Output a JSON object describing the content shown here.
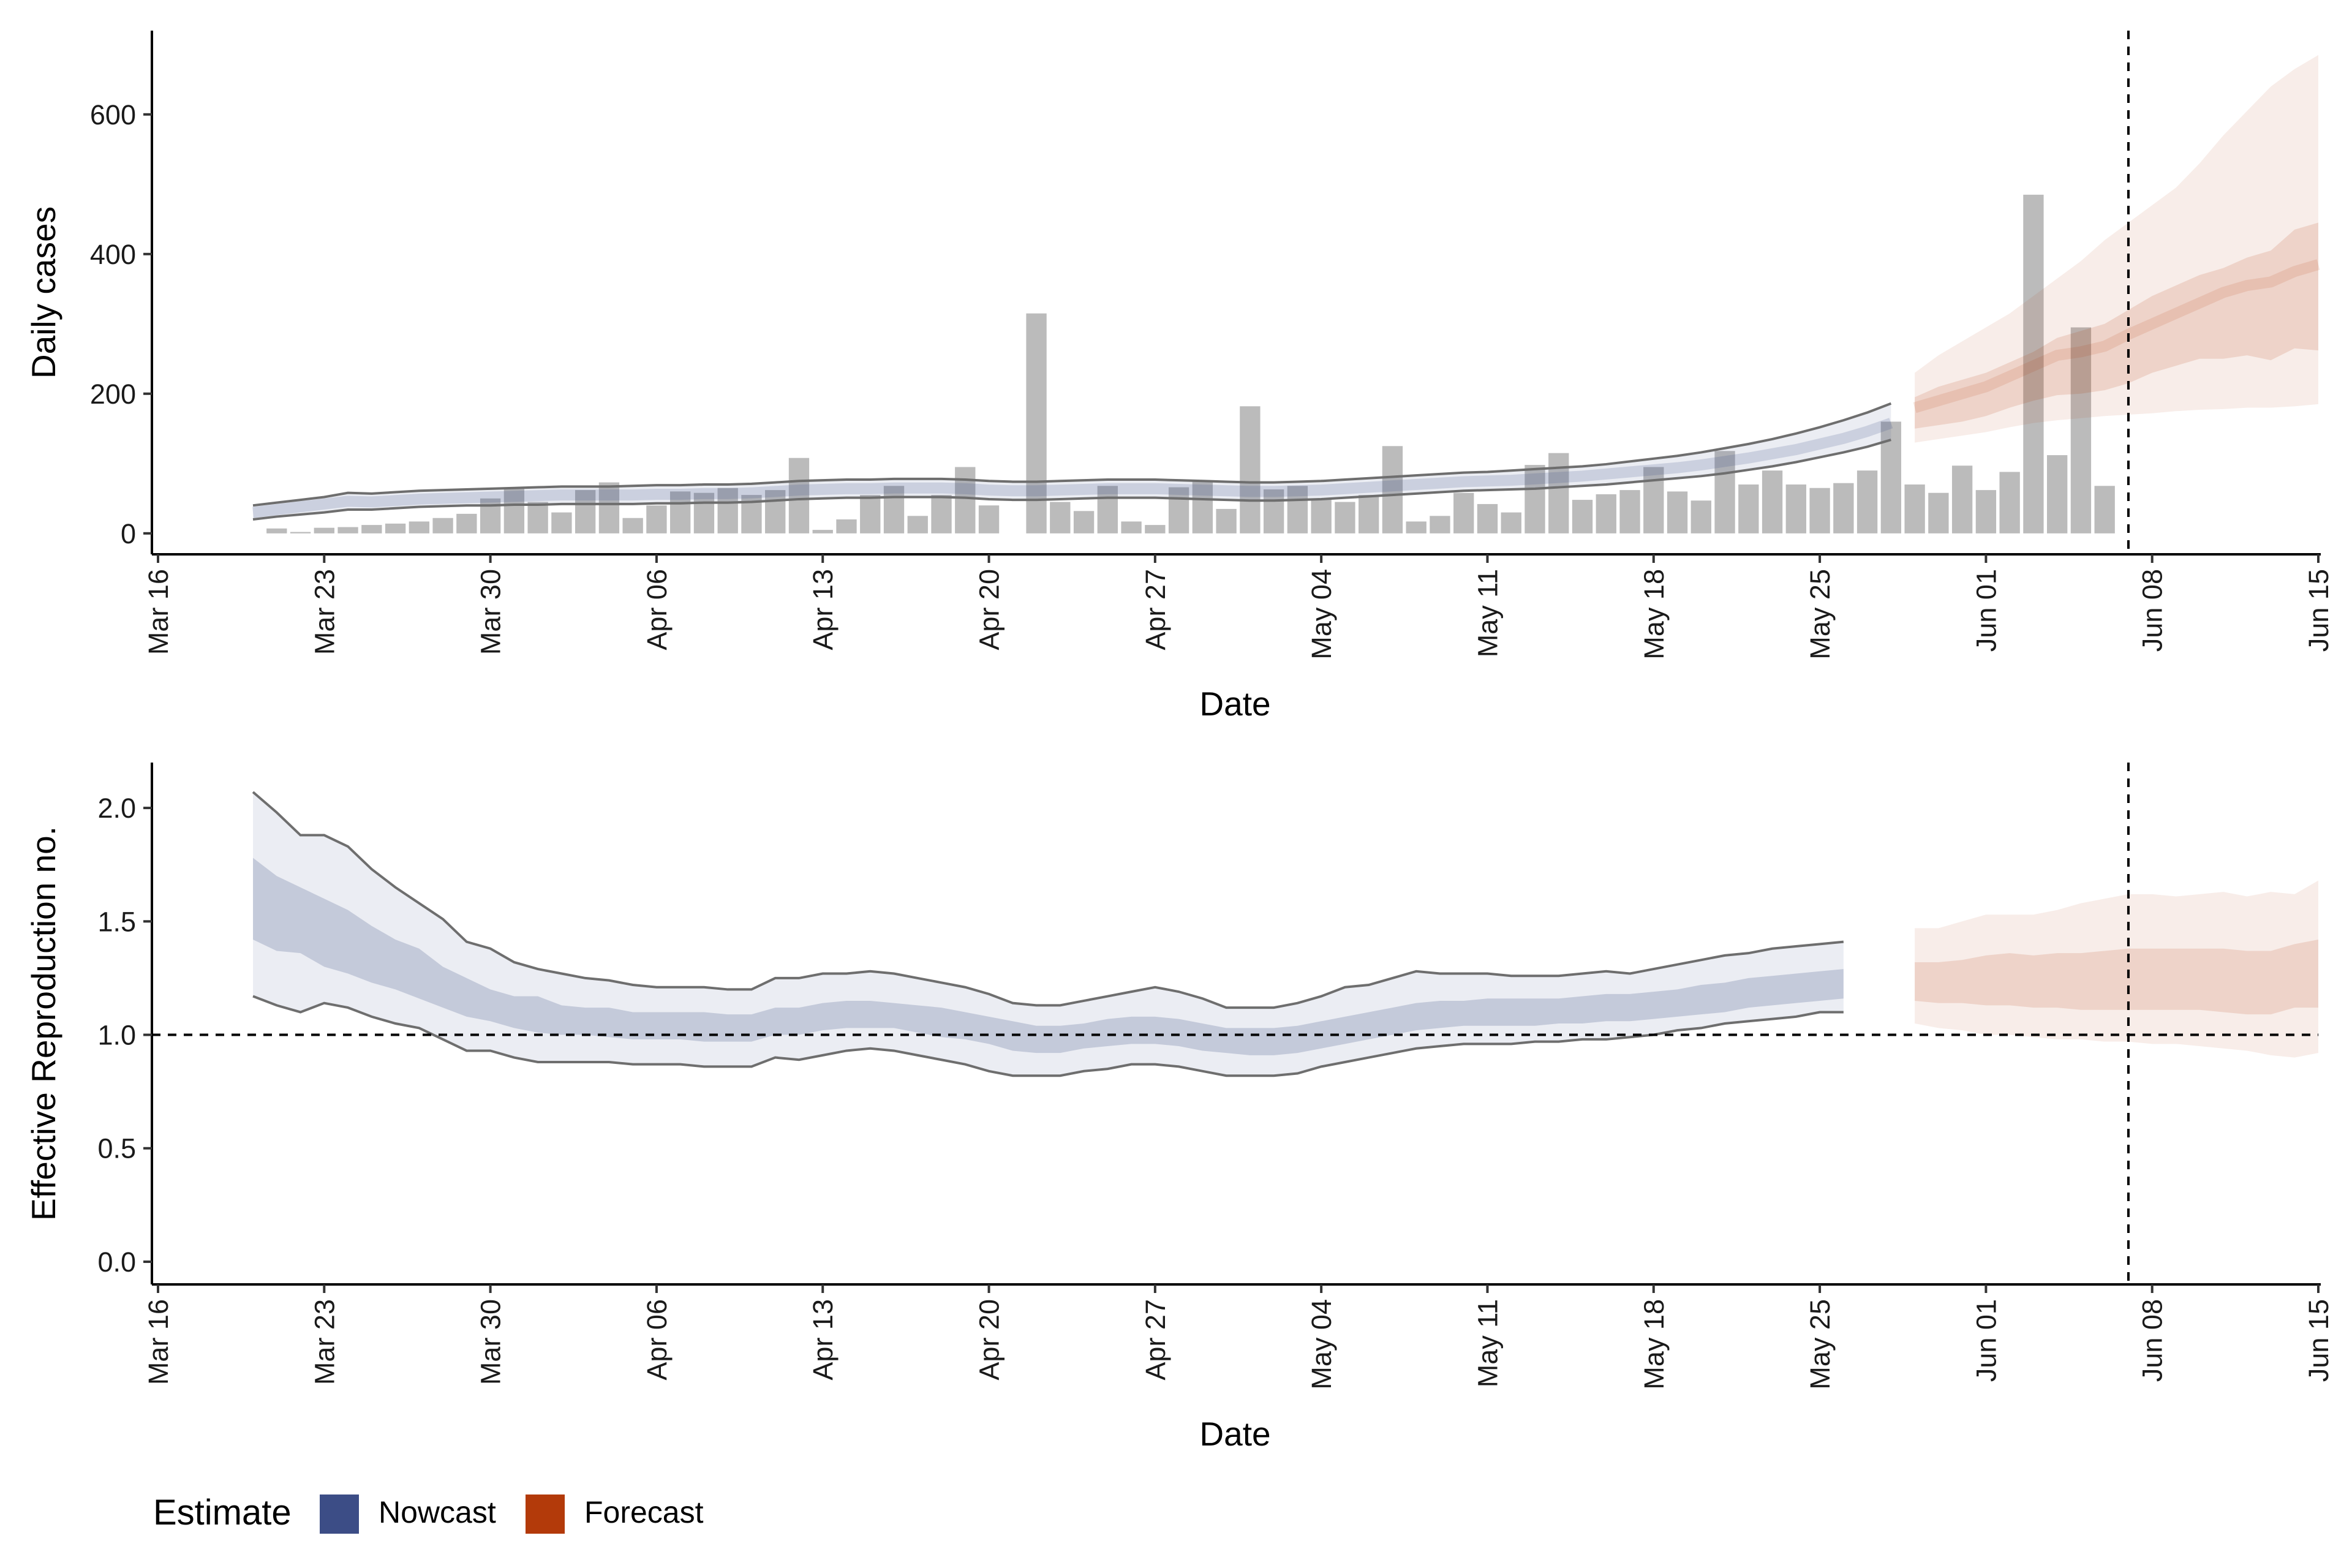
{
  "chart_data": [
    {
      "type": "bar",
      "description_panel": "top",
      "xlabel": "Date",
      "ylabel": "Daily cases",
      "ylim": [
        -30,
        720
      ],
      "y_ticks": [
        0,
        200,
        400,
        600
      ],
      "x_range": [
        "2020-03-16",
        "2020-06-15"
      ],
      "x_ticks": [
        "Mar 16",
        "Mar 23",
        "Mar 30",
        "Apr 06",
        "Apr 13",
        "Apr 20",
        "Apr 27",
        "May 04",
        "May 11",
        "May 18",
        "May 25",
        "Jun 01",
        "Jun 08",
        "Jun 15"
      ],
      "vline_date": "2020-06-07",
      "grid": false,
      "bars": {
        "start_date": "2020-03-21",
        "values": [
          7,
          2,
          8,
          9,
          12,
          14,
          17,
          22,
          28,
          50,
          65,
          45,
          30,
          62,
          73,
          22,
          40,
          60,
          58,
          65,
          55,
          62,
          108,
          5,
          20,
          55,
          68,
          25,
          55,
          95,
          40,
          0,
          315,
          45,
          32,
          68,
          17,
          12,
          66,
          75,
          35,
          182,
          63,
          68,
          50,
          45,
          55,
          125,
          17,
          25,
          58,
          42,
          30,
          98,
          115,
          48,
          56,
          62,
          95,
          60,
          47,
          118,
          70,
          90,
          70,
          65,
          72,
          90,
          160,
          70,
          58,
          97,
          62,
          88,
          485,
          112,
          295,
          68
        ]
      },
      "series": [
        {
          "name": "Nowcast",
          "start_date": "2020-03-20",
          "median": [
            30,
            34,
            38,
            42,
            46,
            45,
            47,
            49,
            50,
            51,
            52,
            53,
            54,
            55,
            55,
            55,
            55,
            56,
            56,
            57,
            57,
            58,
            60,
            62,
            63,
            64,
            64,
            65,
            65,
            65,
            64,
            62,
            61,
            61,
            62,
            63,
            64,
            64,
            64,
            63,
            62,
            61,
            60,
            60,
            61,
            62,
            64,
            66,
            68,
            70,
            72,
            74,
            75,
            76,
            78,
            80,
            82,
            85,
            88,
            91,
            94,
            98,
            103,
            108,
            114,
            120,
            128,
            136,
            146,
            158
          ],
          "lower90": [
            20,
            24,
            27,
            30,
            34,
            34,
            36,
            38,
            39,
            40,
            40,
            41,
            41,
            42,
            42,
            42,
            42,
            43,
            43,
            44,
            44,
            45,
            47,
            49,
            50,
            51,
            51,
            52,
            52,
            52,
            51,
            49,
            48,
            48,
            49,
            50,
            51,
            51,
            51,
            50,
            49,
            48,
            47,
            47,
            48,
            49,
            51,
            53,
            55,
            57,
            59,
            61,
            62,
            63,
            64,
            66,
            68,
            70,
            73,
            76,
            79,
            82,
            86,
            91,
            96,
            102,
            109,
            116,
            124,
            134
          ],
          "upper90": [
            40,
            44,
            48,
            52,
            58,
            57,
            59,
            61,
            62,
            63,
            64,
            65,
            66,
            67,
            67,
            67,
            68,
            69,
            69,
            70,
            70,
            71,
            73,
            75,
            76,
            77,
            77,
            78,
            78,
            78,
            77,
            75,
            74,
            74,
            75,
            76,
            77,
            77,
            77,
            76,
            75,
            74,
            73,
            73,
            74,
            75,
            77,
            79,
            81,
            83,
            85,
            87,
            88,
            90,
            92,
            94,
            96,
            99,
            103,
            107,
            111,
            116,
            122,
            128,
            135,
            143,
            152,
            162,
            173,
            186
          ]
        },
        {
          "name": "Forecast",
          "start_date": "2020-05-29",
          "median": [
            180,
            190,
            200,
            210,
            225,
            240,
            255,
            260,
            268,
            285,
            300,
            315,
            330,
            345,
            355,
            360,
            375,
            385
          ],
          "lower50": [
            150,
            155,
            160,
            168,
            180,
            190,
            198,
            200,
            205,
            215,
            230,
            240,
            250,
            250,
            255,
            248,
            265,
            262
          ],
          "upper50": [
            195,
            210,
            220,
            230,
            245,
            260,
            280,
            290,
            300,
            320,
            340,
            355,
            370,
            380,
            395,
            405,
            435,
            445
          ],
          "lower90": [
            130,
            135,
            140,
            145,
            152,
            158,
            162,
            165,
            168,
            170,
            172,
            175,
            177,
            178,
            180,
            180,
            182,
            185
          ],
          "upper90": [
            230,
            255,
            275,
            295,
            315,
            340,
            365,
            390,
            420,
            445,
            470,
            495,
            530,
            570,
            605,
            640,
            665,
            685
          ]
        }
      ]
    },
    {
      "type": "area",
      "description_panel": "bottom",
      "xlabel": "Date",
      "ylabel": "Effective Reproduction no.",
      "ylim": [
        -0.1,
        2.2
      ],
      "y_ticks": [
        "0.0",
        "0.5",
        "1.0",
        "1.5",
        "2.0"
      ],
      "x_range": [
        "2020-03-16",
        "2020-06-15"
      ],
      "x_ticks": [
        "Mar 16",
        "Mar 23",
        "Mar 30",
        "Apr 06",
        "Apr 13",
        "Apr 20",
        "Apr 27",
        "May 04",
        "May 11",
        "May 18",
        "May 25",
        "Jun 01",
        "Jun 08",
        "Jun 15"
      ],
      "vline_date": "2020-06-07",
      "hline_value": 1.0,
      "grid": false,
      "series": [
        {
          "name": "Nowcast",
          "start_date": "2020-03-20",
          "upper90": [
            2.07,
            1.98,
            1.88,
            1.88,
            1.83,
            1.73,
            1.65,
            1.58,
            1.51,
            1.41,
            1.38,
            1.32,
            1.29,
            1.27,
            1.25,
            1.24,
            1.22,
            1.21,
            1.21,
            1.21,
            1.2,
            1.2,
            1.25,
            1.25,
            1.27,
            1.27,
            1.28,
            1.27,
            1.25,
            1.23,
            1.21,
            1.18,
            1.14,
            1.13,
            1.13,
            1.15,
            1.17,
            1.19,
            1.21,
            1.19,
            1.16,
            1.12,
            1.12,
            1.12,
            1.14,
            1.17,
            1.21,
            1.22,
            1.25,
            1.28,
            1.27,
            1.27,
            1.27,
            1.26,
            1.26,
            1.26,
            1.27,
            1.28,
            1.27,
            1.29,
            1.31,
            1.33,
            1.35,
            1.36,
            1.38,
            1.39,
            1.4,
            1.41
          ],
          "lower90": [
            1.17,
            1.13,
            1.1,
            1.14,
            1.12,
            1.08,
            1.05,
            1.03,
            0.98,
            0.93,
            0.93,
            0.9,
            0.88,
            0.88,
            0.88,
            0.88,
            0.87,
            0.87,
            0.87,
            0.86,
            0.86,
            0.86,
            0.9,
            0.89,
            0.91,
            0.93,
            0.94,
            0.93,
            0.91,
            0.89,
            0.87,
            0.84,
            0.82,
            0.82,
            0.82,
            0.84,
            0.85,
            0.87,
            0.87,
            0.86,
            0.84,
            0.82,
            0.82,
            0.82,
            0.83,
            0.86,
            0.88,
            0.9,
            0.92,
            0.94,
            0.95,
            0.96,
            0.96,
            0.96,
            0.97,
            0.97,
            0.98,
            0.98,
            0.99,
            1.0,
            1.02,
            1.03,
            1.05,
            1.06,
            1.07,
            1.08,
            1.1,
            1.1
          ],
          "upper50": [
            1.78,
            1.7,
            1.65,
            1.6,
            1.55,
            1.48,
            1.42,
            1.38,
            1.3,
            1.25,
            1.2,
            1.17,
            1.17,
            1.13,
            1.12,
            1.12,
            1.1,
            1.1,
            1.1,
            1.1,
            1.09,
            1.09,
            1.12,
            1.12,
            1.14,
            1.15,
            1.15,
            1.14,
            1.13,
            1.12,
            1.1,
            1.08,
            1.06,
            1.04,
            1.04,
            1.05,
            1.07,
            1.08,
            1.08,
            1.07,
            1.05,
            1.03,
            1.03,
            1.03,
            1.04,
            1.06,
            1.08,
            1.1,
            1.12,
            1.14,
            1.15,
            1.15,
            1.16,
            1.16,
            1.16,
            1.16,
            1.17,
            1.18,
            1.18,
            1.19,
            1.2,
            1.22,
            1.23,
            1.25,
            1.26,
            1.27,
            1.28,
            1.29
          ],
          "lower50": [
            1.42,
            1.37,
            1.36,
            1.3,
            1.27,
            1.23,
            1.2,
            1.16,
            1.12,
            1.08,
            1.06,
            1.03,
            1.01,
            1.0,
            1.0,
            0.99,
            0.98,
            0.98,
            0.98,
            0.97,
            0.97,
            0.97,
            1.0,
            1.0,
            1.02,
            1.03,
            1.03,
            1.03,
            1.01,
            0.99,
            0.98,
            0.96,
            0.93,
            0.92,
            0.92,
            0.94,
            0.95,
            0.96,
            0.96,
            0.95,
            0.93,
            0.92,
            0.91,
            0.91,
            0.92,
            0.94,
            0.96,
            0.98,
            1.0,
            1.02,
            1.03,
            1.04,
            1.04,
            1.04,
            1.04,
            1.05,
            1.05,
            1.06,
            1.06,
            1.07,
            1.08,
            1.09,
            1.1,
            1.12,
            1.13,
            1.14,
            1.15,
            1.16
          ]
        },
        {
          "name": "Forecast",
          "start_date": "2020-05-29",
          "upper90": [
            1.47,
            1.47,
            1.5,
            1.53,
            1.53,
            1.53,
            1.55,
            1.58,
            1.6,
            1.62,
            1.62,
            1.61,
            1.62,
            1.63,
            1.61,
            1.63,
            1.62,
            1.68
          ],
          "lower90": [
            1.05,
            1.03,
            1.02,
            1.0,
            1.0,
            0.99,
            0.98,
            0.98,
            0.97,
            0.97,
            0.96,
            0.96,
            0.95,
            0.94,
            0.93,
            0.91,
            0.9,
            0.92
          ],
          "upper50": [
            1.32,
            1.32,
            1.33,
            1.35,
            1.36,
            1.35,
            1.36,
            1.36,
            1.37,
            1.38,
            1.38,
            1.38,
            1.38,
            1.38,
            1.37,
            1.37,
            1.4,
            1.42
          ],
          "lower50": [
            1.15,
            1.14,
            1.14,
            1.13,
            1.13,
            1.12,
            1.12,
            1.11,
            1.11,
            1.11,
            1.11,
            1.11,
            1.11,
            1.1,
            1.09,
            1.09,
            1.12,
            1.12
          ]
        }
      ]
    }
  ],
  "legend": {
    "title": "Estimate",
    "items": [
      {
        "label": "Nowcast",
        "color": "#3c4d86"
      },
      {
        "label": "Forecast",
        "color": "#b33a0a"
      }
    ]
  },
  "colors": {
    "nowcast": "#3c4d86",
    "forecast": "#b33a0a",
    "bars": "#9e9e9e",
    "outline": "#6e6e6e"
  }
}
